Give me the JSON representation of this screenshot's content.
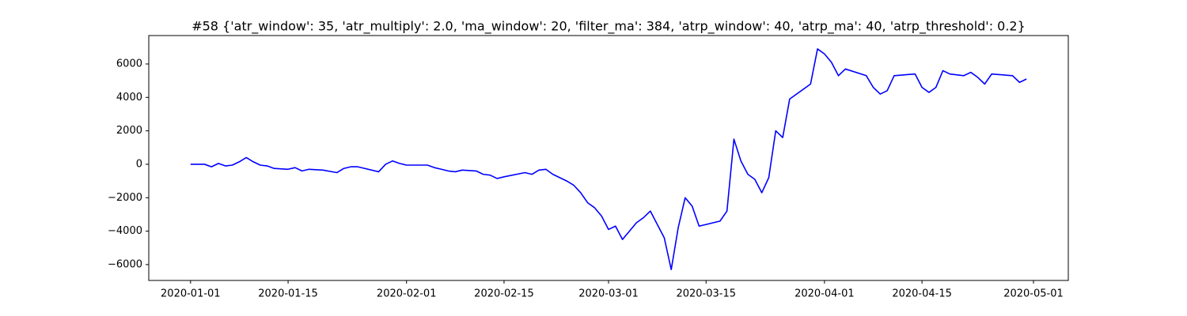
{
  "chart_data": {
    "type": "line",
    "title": "#58 {'atr_window': 35, 'atr_multiply': 2.0, 'ma_window': 20, 'filter_ma': 384, 'atrp_window': 40, 'atrp_ma': 40, 'atrp_threshold': 0.2}",
    "x": [
      "2020-01-01",
      "2020-01-03",
      "2020-01-04",
      "2020-01-05",
      "2020-01-06",
      "2020-01-07",
      "2020-01-08",
      "2020-01-09",
      "2020-01-10",
      "2020-01-11",
      "2020-01-12",
      "2020-01-13",
      "2020-01-15",
      "2020-01-16",
      "2020-01-17",
      "2020-01-18",
      "2020-01-20",
      "2020-01-22",
      "2020-01-23",
      "2020-01-24",
      "2020-01-25",
      "2020-01-28",
      "2020-01-29",
      "2020-01-30",
      "2020-01-31",
      "2020-02-01",
      "2020-02-04",
      "2020-02-05",
      "2020-02-06",
      "2020-02-07",
      "2020-02-08",
      "2020-02-09",
      "2020-02-11",
      "2020-02-12",
      "2020-02-13",
      "2020-02-14",
      "2020-02-15",
      "2020-02-18",
      "2020-02-19",
      "2020-02-20",
      "2020-02-21",
      "2020-02-22",
      "2020-02-24",
      "2020-02-25",
      "2020-02-26",
      "2020-02-27",
      "2020-02-28",
      "2020-02-29",
      "2020-03-01",
      "2020-03-02",
      "2020-03-03",
      "2020-03-04",
      "2020-03-05",
      "2020-03-06",
      "2020-03-07",
      "2020-03-08",
      "2020-03-09",
      "2020-03-10",
      "2020-03-11",
      "2020-03-12",
      "2020-03-13",
      "2020-03-14",
      "2020-03-17",
      "2020-03-18",
      "2020-03-19",
      "2020-03-20",
      "2020-03-21",
      "2020-03-22",
      "2020-03-23",
      "2020-03-24",
      "2020-03-25",
      "2020-03-26",
      "2020-03-27",
      "2020-03-30",
      "2020-03-31",
      "2020-04-01",
      "2020-04-02",
      "2020-04-03",
      "2020-04-04",
      "2020-04-07",
      "2020-04-08",
      "2020-04-09",
      "2020-04-10",
      "2020-04-11",
      "2020-04-14",
      "2020-04-15",
      "2020-04-16",
      "2020-04-17",
      "2020-04-18",
      "2020-04-19",
      "2020-04-21",
      "2020-04-22",
      "2020-04-23",
      "2020-04-24",
      "2020-04-25",
      "2020-04-28",
      "2020-04-29",
      "2020-04-30"
    ],
    "series": [
      {
        "color": "#0000ff",
        "values": [
          0,
          0,
          -150,
          50,
          -100,
          -50,
          150,
          400,
          150,
          -50,
          -100,
          -250,
          -300,
          -200,
          -400,
          -300,
          -350,
          -500,
          -250,
          -150,
          -150,
          -450,
          0,
          200,
          50,
          -50,
          -50,
          -200,
          -300,
          -400,
          -450,
          -350,
          -400,
          -600,
          -650,
          -850,
          -750,
          -500,
          -600,
          -350,
          -300,
          -600,
          -1000,
          -1250,
          -1700,
          -2300,
          -2600,
          -3100,
          -3900,
          -3700,
          -4500,
          -4000,
          -3500,
          -3200,
          -2800,
          -3600,
          -4400,
          -6300,
          -3800,
          -2000,
          -2500,
          -3700,
          -3400,
          -2800,
          1500,
          200,
          -600,
          -900,
          -1700,
          -800,
          2000,
          1600,
          3900,
          4800,
          6900,
          6600,
          6100,
          5300,
          5700,
          5300,
          4600,
          4200,
          4400,
          5300,
          5400,
          4600,
          4300,
          4600,
          5600,
          5400,
          5300,
          5500,
          5200,
          4800,
          5400,
          5300,
          4900,
          5100
        ]
      }
    ],
    "xlim": [
      "2019-12-26",
      "2020-05-06"
    ],
    "xticks": [
      "2020-01-01",
      "2020-01-15",
      "2020-02-01",
      "2020-02-15",
      "2020-03-01",
      "2020-03-15",
      "2020-04-01",
      "2020-04-15",
      "2020-05-01"
    ],
    "ylim": [
      -6950,
      7700
    ],
    "yticks": [
      {
        "value": -6000,
        "label": "−6000"
      },
      {
        "value": -4000,
        "label": "−4000"
      },
      {
        "value": -2000,
        "label": "−2000"
      },
      0,
      2000,
      4000,
      6000
    ],
    "grid": false
  }
}
